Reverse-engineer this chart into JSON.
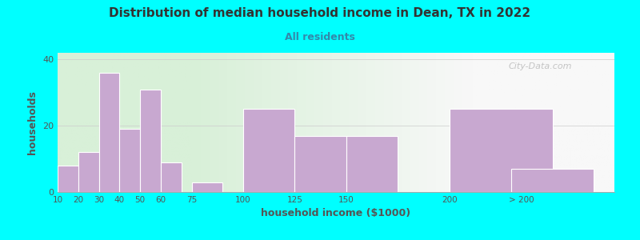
{
  "title": "Distribution of median household income in Dean, TX in 2022",
  "subtitle": "All residents",
  "xlabel": "household income ($1000)",
  "ylabel": "households",
  "background_outer": "#00FFFF",
  "background_inner_left": "#d8f0d8",
  "background_inner_right": "#f8f8f8",
  "bar_color": "#c8a8d0",
  "bar_edge_color": "#ffffff",
  "title_color": "#333333",
  "subtitle_color": "#3388aa",
  "axis_label_color": "#555555",
  "tick_label_color": "#555555",
  "watermark": "City-Data.com",
  "categories": [
    "10",
    "20",
    "30",
    "40",
    "50",
    "60",
    "75",
    "100",
    "125",
    "150",
    "200",
    "> 200"
  ],
  "bar_lefts": [
    10,
    20,
    30,
    40,
    50,
    60,
    75,
    100,
    125,
    150,
    200,
    230
  ],
  "bar_widths": [
    10,
    10,
    10,
    10,
    10,
    10,
    15,
    25,
    25,
    25,
    50,
    40
  ],
  "values": [
    8,
    12,
    36,
    19,
    31,
    9,
    3,
    25,
    17,
    17,
    25,
    7
  ],
  "xlim": [
    10,
    280
  ],
  "ylim": [
    0,
    42
  ],
  "yticks": [
    0,
    20,
    40
  ],
  "xtick_positions": [
    10,
    20,
    30,
    40,
    50,
    60,
    75,
    100,
    125,
    150,
    200,
    235
  ],
  "xtick_labels": [
    "10",
    "20",
    "30",
    "40",
    "50",
    "60",
    "75",
    "100",
    "125",
    "150",
    "200",
    "> 200"
  ],
  "green_bg_end": 90,
  "white_bg_start": 200
}
